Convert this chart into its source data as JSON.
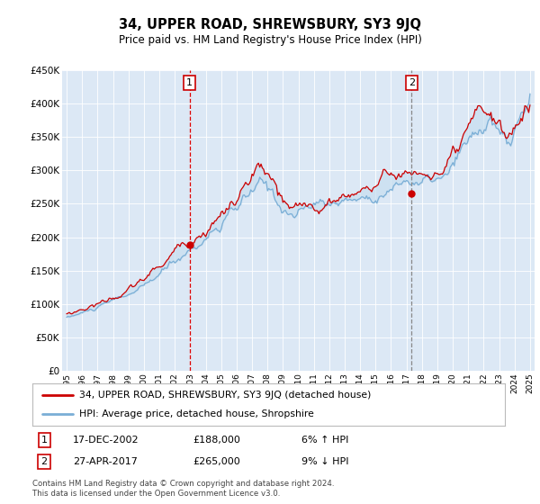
{
  "title": "34, UPPER ROAD, SHREWSBURY, SY3 9JQ",
  "subtitle": "Price paid vs. HM Land Registry's House Price Index (HPI)",
  "ylim": [
    0,
    450000
  ],
  "yticks": [
    0,
    50000,
    100000,
    150000,
    200000,
    250000,
    300000,
    350000,
    400000,
    450000
  ],
  "ytick_labels": [
    "£0",
    "£50K",
    "£100K",
    "£150K",
    "£200K",
    "£250K",
    "£300K",
    "£350K",
    "£400K",
    "£450K"
  ],
  "sale1_year": 2002.96,
  "sale1_price": 188000,
  "sale2_year": 2017.33,
  "sale2_price": 265000,
  "sale1_date": "17-DEC-2002",
  "sale1_amount": "£188,000",
  "sale1_hpi": "6% ↑ HPI",
  "sale2_date": "27-APR-2017",
  "sale2_amount": "£265,000",
  "sale2_hpi": "9% ↓ HPI",
  "legend_line1": "34, UPPER ROAD, SHREWSBURY, SY3 9JQ (detached house)",
  "legend_line2": "HPI: Average price, detached house, Shropshire",
  "footer": "Contains HM Land Registry data © Crown copyright and database right 2024.\nThis data is licensed under the Open Government Licence v3.0.",
  "hpi_color": "#7aaed6",
  "price_color": "#cc0000",
  "fill_color": "#c8dff0",
  "vline1_color": "#dd0000",
  "vline2_color": "#888888",
  "plot_bg": "#dce8f5",
  "x_start": 1995,
  "x_end": 2025,
  "xtick_years": [
    1995,
    1996,
    1997,
    1998,
    1999,
    2000,
    2001,
    2002,
    2003,
    2004,
    2005,
    2006,
    2007,
    2008,
    2009,
    2010,
    2011,
    2012,
    2013,
    2014,
    2015,
    2016,
    2017,
    2018,
    2019,
    2020,
    2021,
    2022,
    2023,
    2024,
    2025
  ]
}
